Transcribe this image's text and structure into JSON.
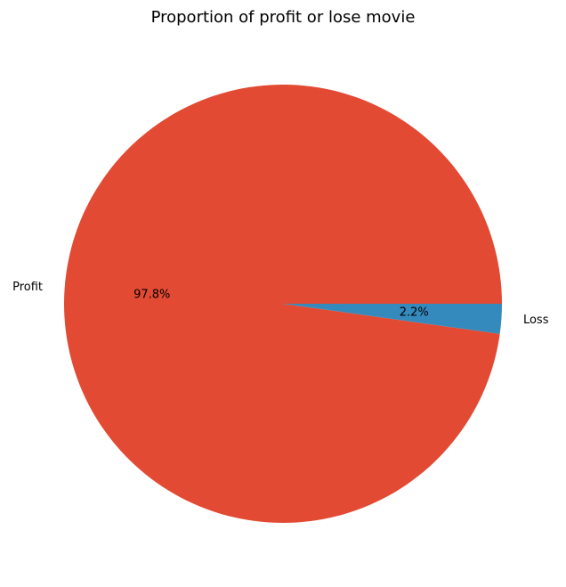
{
  "chart_data": {
    "type": "pie",
    "title": "Proportion of profit or lose movie",
    "labels": [
      "Profit",
      "Loss"
    ],
    "values": [
      97.8,
      2.2
    ],
    "percent_labels": [
      "97.8%",
      "2.2%"
    ],
    "colors": [
      "#E24A33",
      "#348ABD"
    ],
    "start_angle_deg": 0,
    "direction": "counterclockwise",
    "legend": "none"
  }
}
